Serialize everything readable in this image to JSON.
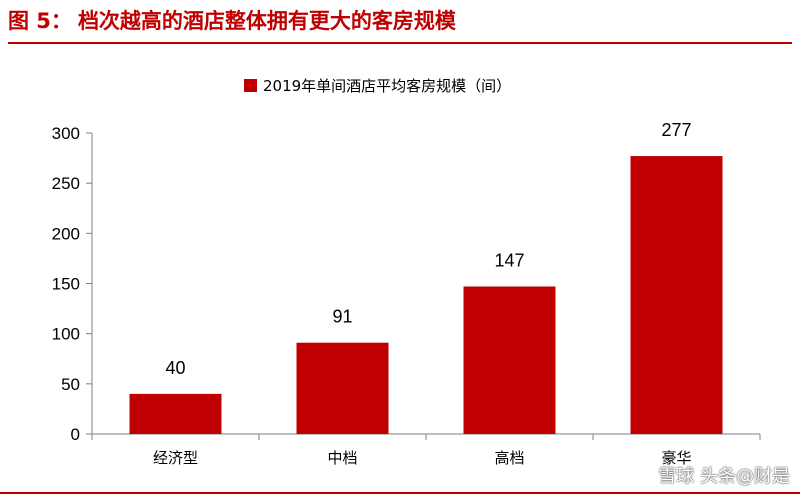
{
  "figure": {
    "label": "图 5：",
    "title": "档次越高的酒店整体拥有更大的客房规模"
  },
  "watermark": "雪球 头条@财是",
  "colors": {
    "accent": "#c00000",
    "bar": "#c00000"
  },
  "chart_data": {
    "type": "bar",
    "categories": [
      "经济型",
      "中档",
      "高档",
      "豪华"
    ],
    "series": [
      {
        "name": "2019年单间酒店平均客房规模（间）",
        "values": [
          40,
          91,
          147,
          277
        ]
      }
    ],
    "ylim": [
      0,
      300
    ],
    "yticks": [
      0,
      50,
      100,
      150,
      200,
      250,
      300
    ],
    "grid": false,
    "legend": "top-center",
    "data_labels": true
  }
}
